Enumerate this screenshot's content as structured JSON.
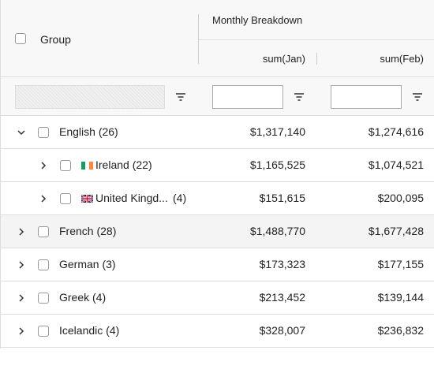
{
  "header": {
    "group": "Group",
    "column_group": "Monthly Breakdown",
    "columns": [
      "sum(Jan)",
      "sum(Feb)"
    ]
  },
  "rows": [
    {
      "group": "English",
      "count": "(26)",
      "jan": "$1,317,140",
      "feb": "$1,274,616"
    },
    {
      "group": "Ireland",
      "count": "(22)",
      "jan": "$1,165,525",
      "feb": "$1,074,521"
    },
    {
      "group": "United Kingd...",
      "count": "(4)",
      "jan": "$151,615",
      "feb": "$200,095"
    },
    {
      "group": "French",
      "count": "(28)",
      "jan": "$1,488,770",
      "feb": "$1,677,428"
    },
    {
      "group": "German",
      "count": "(3)",
      "jan": "$173,323",
      "feb": "$177,155"
    },
    {
      "group": "Greek",
      "count": "(4)",
      "jan": "$213,452",
      "feb": "$139,144"
    },
    {
      "group": "Icelandic",
      "count": "(4)",
      "jan": "$328,007",
      "feb": "$236,832"
    }
  ]
}
